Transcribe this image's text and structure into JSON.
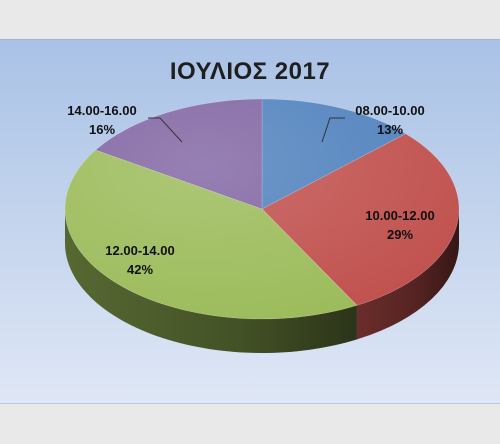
{
  "chart_data": {
    "type": "pie",
    "title": "ΙΟΥΛΙΟΣ 2017",
    "slices": [
      {
        "label": "08.00-10.00",
        "value": 13,
        "pct_label": "13%",
        "color": "#4f81bd"
      },
      {
        "label": "10.00-12.00",
        "value": 29,
        "pct_label": "29%",
        "color": "#c0504d"
      },
      {
        "label": "12.00-14.00",
        "value": 42,
        "pct_label": "42%",
        "color": "#9bbb59"
      },
      {
        "label": "14.00-16.00",
        "value": 16,
        "pct_label": "16%",
        "color": "#8064a2"
      }
    ],
    "style": "3d",
    "legend": "none"
  }
}
